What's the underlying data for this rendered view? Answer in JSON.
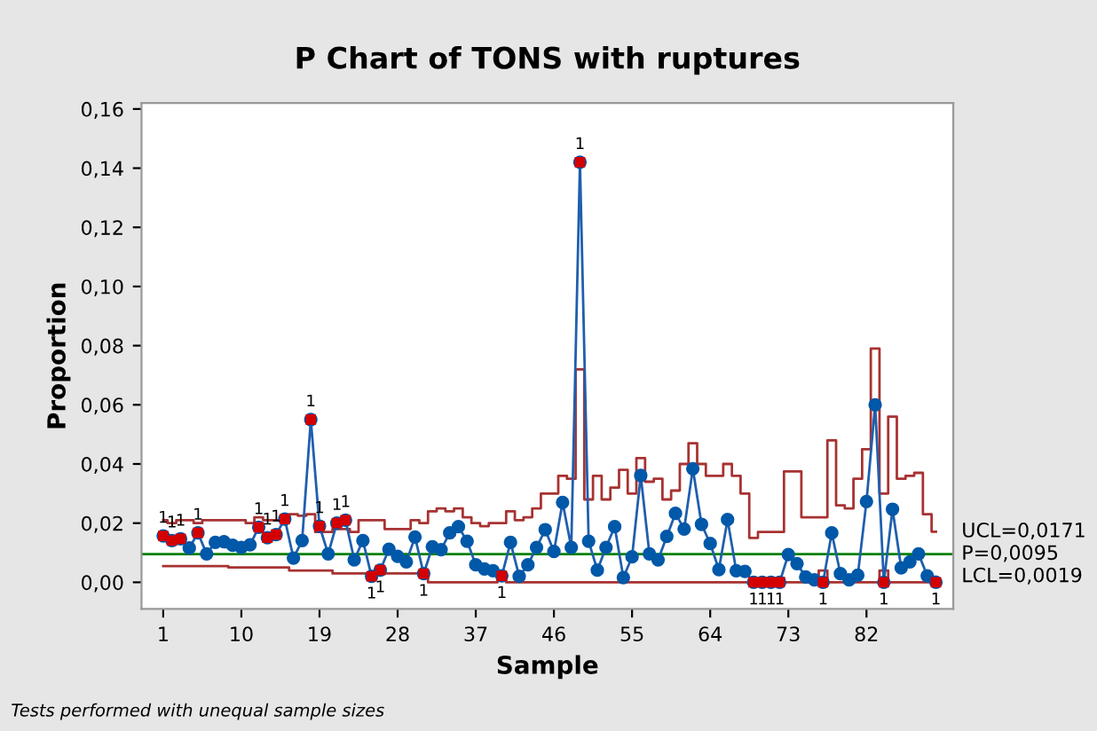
{
  "chart_data": {
    "type": "line",
    "title": "P Chart of TONS with ruptures",
    "xlabel": "Sample",
    "ylabel": "Proportion",
    "xlim": [
      -1.5,
      92
    ],
    "xticks": [
      1,
      10,
      19,
      28,
      37,
      46,
      55,
      64,
      73,
      82
    ],
    "ylim": [
      -0.009,
      0.162
    ],
    "yticks": [
      {
        "value": 0,
        "label": "0,00"
      },
      {
        "value": 0.02,
        "label": "0,02"
      },
      {
        "value": 0.04,
        "label": "0,04"
      },
      {
        "value": 0.06,
        "label": "0,06"
      },
      {
        "value": 0.08,
        "label": "0,08"
      },
      {
        "value": 0.1,
        "label": "0,10"
      },
      {
        "value": 0.12,
        "label": "0,12"
      },
      {
        "value": 0.14,
        "label": "0,14"
      },
      {
        "value": 0.16,
        "label": "0,16"
      }
    ],
    "grid": false,
    "legend": false,
    "x": [
      1,
      2,
      3,
      4,
      5,
      6,
      7,
      8,
      9,
      10,
      11,
      12,
      13,
      14,
      15,
      16,
      17,
      18,
      19,
      20,
      21,
      22,
      23,
      24,
      25,
      26,
      27,
      28,
      29,
      30,
      31,
      32,
      33,
      34,
      35,
      36,
      37,
      38,
      39,
      40,
      41,
      42,
      43,
      44,
      45,
      46,
      47,
      48,
      49,
      50,
      51,
      52,
      53,
      54,
      55,
      56,
      57,
      58,
      59,
      60,
      61,
      62,
      63,
      64,
      65,
      66,
      67,
      68,
      69,
      70,
      71,
      72,
      73,
      74,
      75,
      76,
      77,
      78,
      79,
      80,
      81,
      82,
      83,
      84,
      85,
      86,
      87,
      88,
      89,
      90
    ],
    "series": [
      {
        "type": "step",
        "color": "#a83232",
        "name": "UCL=0,0171",
        "values": [
          0.021,
          0.02,
          0.021,
          0.021,
          0.02,
          0.021,
          0.021,
          0.021,
          0.021,
          0.021,
          0.02,
          0.022,
          0.021,
          0.021,
          0.022,
          0.023,
          0.0225,
          0.023,
          0.017,
          0.017,
          0.018,
          0.018,
          0.017,
          0.021,
          0.021,
          0.021,
          0.018,
          0.018,
          0.018,
          0.021,
          0.02,
          0.024,
          0.025,
          0.024,
          0.025,
          0.022,
          0.02,
          0.019,
          0.02,
          0.02,
          0.024,
          0.021,
          0.022,
          0.025,
          0.03,
          0.03,
          0.036,
          0.035,
          0.072,
          0.028,
          0.036,
          0.028,
          0.032,
          0.038,
          0.03,
          0.042,
          0.034,
          0.035,
          0.028,
          0.031,
          0.04,
          0.047,
          0.04,
          0.036,
          0.036,
          0.04,
          0.036,
          0.03,
          0.015,
          0.017,
          0.017,
          0.017,
          0.0375,
          0.0375,
          0.022,
          0.022,
          0.022,
          0.048,
          0.026,
          0.025,
          0.035,
          0.045,
          0.079,
          0.03,
          0.056,
          0.035,
          0.036,
          0.037,
          0.023,
          0.0171
        ]
      },
      {
        "type": "step",
        "color": "#a83232",
        "name": "LCL=0,0019",
        "values": [
          0.0055,
          0.0055,
          0.0055,
          0.0055,
          0.0055,
          0.0055,
          0.0055,
          0.0055,
          0.005,
          0.005,
          0.005,
          0.005,
          0.005,
          0.005,
          0.005,
          0.004,
          0.004,
          0.004,
          0.004,
          0.004,
          0.003,
          0.003,
          0.003,
          0.003,
          0.003,
          0.005,
          0.003,
          0.003,
          0.003,
          0.003,
          0.004,
          0,
          0,
          0,
          0,
          0,
          0,
          0,
          0,
          0.003,
          0,
          0,
          0,
          0,
          0,
          0,
          0,
          0,
          0,
          0,
          0,
          0,
          0,
          0,
          0,
          0,
          0,
          0,
          0,
          0,
          0,
          0,
          0,
          0,
          0,
          0,
          0,
          0,
          0.0015,
          0.0015,
          0.0015,
          0.0015,
          0,
          0,
          0,
          0,
          0.004,
          0,
          0,
          0,
          0,
          0,
          0,
          0.004,
          0,
          0,
          0,
          0,
          0,
          0.0019
        ]
      },
      {
        "color": "#1f5fae",
        "marker": "circle",
        "values": [
          0.0157,
          0.0141,
          0.0147,
          0.0116,
          0.0167,
          0.0096,
          0.0135,
          0.0137,
          0.0125,
          0.0118,
          0.0127,
          0.0186,
          0.0151,
          0.0161,
          0.0214,
          0.0082,
          0.0141,
          0.055,
          0.019,
          0.0096,
          0.02,
          0.021,
          0.0076,
          0.0141,
          0.002,
          0.0041,
          0.0112,
          0.0088,
          0.0069,
          0.0153,
          0.0029,
          0.012,
          0.011,
          0.0167,
          0.0188,
          0.0139,
          0.0059,
          0.0045,
          0.0039,
          0.0022,
          0.0135,
          0.002,
          0.0059,
          0.0118,
          0.0178,
          0.0104,
          0.027,
          0.0118,
          0.142,
          0.0139,
          0.0041,
          0.0118,
          0.0188,
          0.0016,
          0.0086,
          0.0361,
          0.0096,
          0.0076,
          0.0155,
          0.0233,
          0.018,
          0.0384,
          0.0196,
          0.0131,
          0.0043,
          0.0212,
          0.0039,
          0.0037,
          0,
          0,
          0,
          0,
          0.0094,
          0.0063,
          0.0018,
          0.0008,
          0,
          0.0167,
          0.0029,
          0.0008,
          0.0024,
          0.0273,
          0.06,
          0,
          0.0247,
          0.0049,
          0.0069,
          0.0096,
          0.0022,
          0
        ]
      },
      {
        "type": "scatter",
        "color": "#d40000",
        "marker": "square",
        "x": [
          1,
          2,
          3,
          5,
          12,
          13,
          14,
          15,
          18,
          19,
          21,
          22,
          25,
          26,
          31,
          40,
          49,
          69,
          70,
          71,
          72,
          77,
          84,
          90
        ],
        "values": [
          0.0157,
          0.0141,
          0.0147,
          0.0167,
          0.0186,
          0.0151,
          0.0161,
          0.0214,
          0.055,
          0.019,
          0.02,
          0.021,
          0.002,
          0.0041,
          0.0029,
          0.0022,
          0.142,
          0,
          0,
          0,
          0,
          0,
          0,
          0
        ]
      }
    ],
    "ref_lines": [
      {
        "axis": "y",
        "value": 0.0095,
        "label": "P=0,0095",
        "color": "#008000"
      }
    ],
    "annotations": [
      "Tests performed with unequal sample sizes",
      {
        "text": "1",
        "x": 1,
        "y": 0.0157
      },
      {
        "text": "1",
        "x": 2,
        "y": 0.0141
      },
      {
        "text": "1",
        "x": 3,
        "y": 0.0147
      },
      {
        "text": "1",
        "x": 5,
        "y": 0.0167
      },
      {
        "text": "1",
        "x": 12,
        "y": 0.0186
      },
      {
        "text": "1",
        "x": 13,
        "y": 0.0151
      },
      {
        "text": "1",
        "x": 14,
        "y": 0.0161
      },
      {
        "text": "1",
        "x": 15,
        "y": 0.0214
      },
      {
        "text": "1",
        "x": 18,
        "y": 0.055
      },
      {
        "text": "1",
        "x": 19,
        "y": 0.019
      },
      {
        "text": "1",
        "x": 21,
        "y": 0.02
      },
      {
        "text": "1",
        "x": 22,
        "y": 0.021
      },
      {
        "text": "1",
        "x": 25,
        "y": 0.002
      },
      {
        "text": "1",
        "x": 26,
        "y": 0.0041
      },
      {
        "text": "1",
        "x": 31,
        "y": 0.0029
      },
      {
        "text": "1",
        "x": 40,
        "y": 0.0022
      },
      {
        "text": "1",
        "x": 49,
        "y": 0.142
      },
      {
        "text": "1",
        "x": 69,
        "y": 0
      },
      {
        "text": "1",
        "x": 70,
        "y": 0
      },
      {
        "text": "1",
        "x": 71,
        "y": 0
      },
      {
        "text": "1",
        "x": 72,
        "y": 0
      },
      {
        "text": "1",
        "x": 77,
        "y": 0
      },
      {
        "text": "1",
        "x": 84,
        "y": 0
      },
      {
        "text": "1",
        "x": 90,
        "y": 0
      }
    ]
  }
}
